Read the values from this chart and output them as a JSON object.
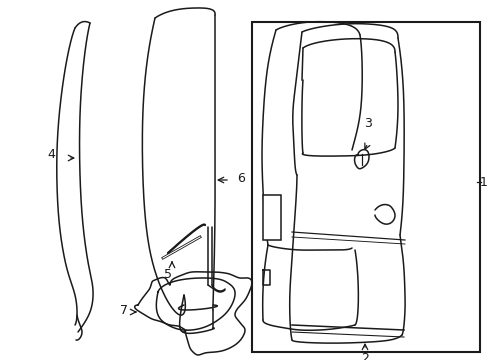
{
  "background_color": "#ffffff",
  "line_color": "#1a1a1a",
  "lw": 1.1,
  "label_fontsize": 9,
  "fig_w": 4.89,
  "fig_h": 3.6,
  "dpi": 100
}
